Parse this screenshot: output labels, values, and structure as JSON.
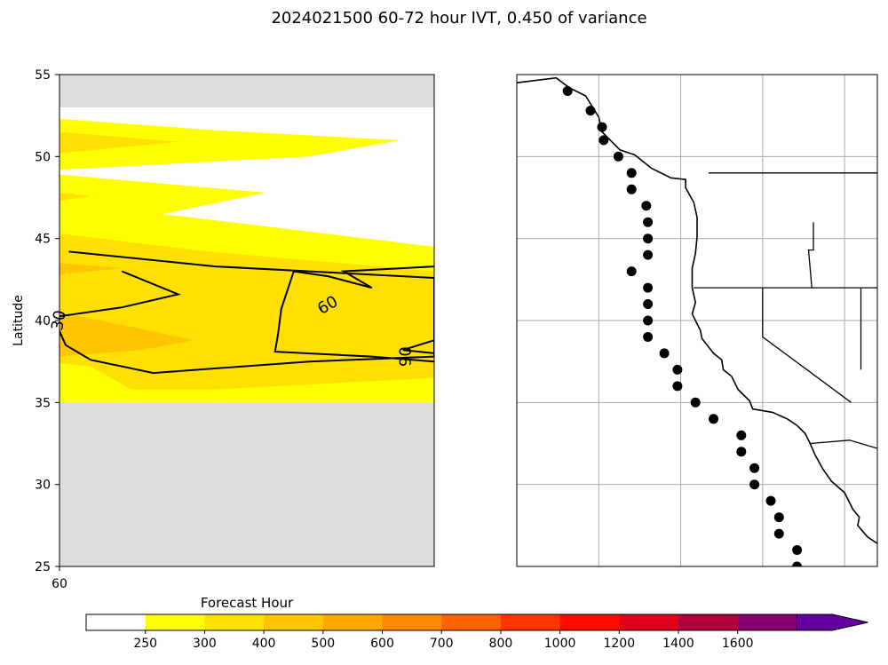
{
  "title": "2024021500 60-72 hour IVT, 0.450 of variance",
  "chart_data": [
    {
      "type": "heatmap",
      "panel": "left",
      "xlabel": "Forecast Hour",
      "ylabel": "Latitude",
      "x_tick_labels": [
        "60"
      ],
      "y_ticks": [
        25,
        30,
        35,
        40,
        45,
        50,
        55
      ],
      "ylim": [
        25,
        55
      ],
      "xlim": [
        60,
        72
      ],
      "no_data_lat_ranges": [
        [
          25,
          35
        ],
        [
          53,
          55
        ]
      ],
      "filled_regions": [
        {
          "level": "250-300",
          "color": "#ffff00",
          "polygon": [
            [
              60,
              52.3
            ],
            [
              65,
              51.6
            ],
            [
              70.9,
              51
            ],
            [
              68,
              50
            ],
            [
              60,
              49.2
            ],
            [
              60,
              52.3
            ]
          ]
        },
        {
          "level": "300-400",
          "color": "#ffe000",
          "polygon": [
            [
              60,
              51.5
            ],
            [
              63.8,
              50.9
            ],
            [
              60,
              50.2
            ],
            [
              60,
              51.5
            ]
          ]
        },
        {
          "level": "250-300",
          "color": "#ffff00",
          "polygon": [
            [
              60,
              48.9
            ],
            [
              66.6,
              47.8
            ],
            [
              63.3,
              46.5
            ],
            [
              72,
              44.5
            ],
            [
              72,
              35
            ],
            [
              60,
              35
            ],
            [
              60,
              48.9
            ]
          ]
        },
        {
          "level": "300-400",
          "color": "#ffe000",
          "polygon": [
            [
              60,
              47.8
            ],
            [
              61,
              47.6
            ],
            [
              60,
              47.3
            ],
            [
              60,
              47.8
            ]
          ]
        },
        {
          "level": "300-400",
          "color": "#ffe000",
          "polygon": [
            [
              60,
              45.3
            ],
            [
              64.8,
              44.2
            ],
            [
              72,
              43
            ],
            [
              72,
              36.5
            ],
            [
              65,
              35.8
            ],
            [
              62.3,
              35.8
            ],
            [
              61,
              37.2
            ],
            [
              60,
              37.4
            ],
            [
              60,
              45.3
            ]
          ]
        },
        {
          "level": "400-500",
          "color": "#ffc500",
          "polygon": [
            [
              60,
              43.5
            ],
            [
              62,
              43.2
            ],
            [
              60,
              42.8
            ],
            [
              60,
              43.5
            ]
          ]
        },
        {
          "level": "400-500",
          "color": "#ffc500",
          "polygon": [
            [
              60,
              40.5
            ],
            [
              62.6,
              39.5
            ],
            [
              64.3,
              38.8
            ],
            [
              62.6,
              38.2
            ],
            [
              60,
              37.8
            ],
            [
              60,
              40.5
            ]
          ]
        }
      ],
      "contours": [
        {
          "label": "30",
          "points": [
            [
              60.3,
              44.2
            ],
            [
              65,
              43.3
            ],
            [
              72,
              42.6
            ],
            [
              72,
              37.8
            ],
            [
              68,
              37.5
            ],
            [
              63,
              36.8
            ],
            [
              61,
              37.6
            ],
            [
              60.2,
              38.5
            ],
            [
              59.8,
              40.2
            ],
            [
              62,
              40.8
            ],
            [
              63.8,
              41.6
            ],
            [
              62,
              43
            ]
          ]
        },
        {
          "label": "60",
          "points": [
            [
              72,
              43.3
            ],
            [
              69.1,
              43
            ],
            [
              70,
              42
            ],
            [
              68.6,
              42.7
            ],
            [
              67.5,
              43
            ],
            [
              67.1,
              40.7
            ],
            [
              67,
              39.2
            ],
            [
              66.9,
              38.1
            ],
            [
              70,
              37.8
            ],
            [
              72,
              37.5
            ]
          ]
        },
        {
          "label": "90",
          "points": [
            [
              72,
              38.8
            ],
            [
              71,
              38.2
            ],
            [
              72,
              38
            ]
          ]
        }
      ]
    },
    {
      "type": "map",
      "panel": "right",
      "region": "North American west coast",
      "lon_range": [
        -135,
        -113
      ],
      "lat_range": [
        25,
        55
      ],
      "gridline_lons": [
        -130,
        -125,
        -120,
        -115
      ],
      "gridline_lats": [
        30,
        35,
        40,
        45,
        50
      ],
      "marker_color": "#000000",
      "points": [
        [
          -131.9,
          54
        ],
        [
          -130.5,
          52.8
        ],
        [
          -129.8,
          51.8
        ],
        [
          -129.7,
          51
        ],
        [
          -128.8,
          50
        ],
        [
          -128,
          49
        ],
        [
          -128,
          48
        ],
        [
          -127.1,
          47
        ],
        [
          -127,
          46
        ],
        [
          -127,
          45
        ],
        [
          -127,
          44
        ],
        [
          -128,
          43
        ],
        [
          -127,
          42
        ],
        [
          -127,
          41
        ],
        [
          -127,
          40
        ],
        [
          -127,
          39
        ],
        [
          -126,
          38
        ],
        [
          -125.2,
          37
        ],
        [
          -125.2,
          36
        ],
        [
          -124.1,
          35
        ],
        [
          -123,
          34
        ],
        [
          -121.3,
          33
        ],
        [
          -121.3,
          32
        ],
        [
          -120.5,
          31
        ],
        [
          -120.5,
          30
        ],
        [
          -119.5,
          29
        ],
        [
          -119,
          28
        ],
        [
          -119,
          27
        ],
        [
          -117.9,
          26
        ],
        [
          -117.9,
          25
        ]
      ],
      "coastline": [
        [
          -135,
          54.5
        ],
        [
          -132.6,
          54.8
        ],
        [
          -131.8,
          54.2
        ],
        [
          -130.8,
          53.7
        ],
        [
          -130,
          52.4
        ],
        [
          -129.8,
          51.5
        ],
        [
          -128.7,
          50.4
        ],
        [
          -127.8,
          50.1
        ],
        [
          -126.8,
          49.3
        ],
        [
          -125.6,
          48.7
        ],
        [
          -124.7,
          48.6
        ],
        [
          -124.7,
          48.1
        ],
        [
          -124.2,
          47.2
        ],
        [
          -124,
          46.3
        ],
        [
          -124,
          45.1
        ],
        [
          -124.1,
          44.1
        ],
        [
          -124.3,
          43.2
        ],
        [
          -124.3,
          42
        ],
        [
          -124.1,
          41.1
        ],
        [
          -124.3,
          40.4
        ],
        [
          -123.8,
          39.4
        ],
        [
          -123.7,
          38.9
        ],
        [
          -123,
          38
        ],
        [
          -122.5,
          37.6
        ],
        [
          -122.4,
          37
        ],
        [
          -121.9,
          36.6
        ],
        [
          -121.5,
          35.8
        ],
        [
          -120.8,
          35.1
        ],
        [
          -120.6,
          34.6
        ],
        [
          -119.4,
          34.4
        ],
        [
          -118.5,
          34
        ],
        [
          -117.9,
          33.6
        ],
        [
          -117.4,
          33.1
        ],
        [
          -117.1,
          32.5
        ],
        [
          -116.8,
          31.8
        ],
        [
          -116.3,
          30.9
        ],
        [
          -115.8,
          30.2
        ],
        [
          -115,
          29.5
        ],
        [
          -114.5,
          28.5
        ],
        [
          -114.1,
          28
        ],
        [
          -114.2,
          27.5
        ],
        [
          -113.6,
          26.8
        ],
        [
          -113,
          26.4
        ]
      ],
      "border_lines": [
        {
          "name": "49th parallel",
          "points": [
            [
              -123.3,
              49
            ],
            [
              -113,
              49
            ]
          ]
        },
        {
          "name": "Oregon-California",
          "points": [
            [
              -124.2,
              42
            ],
            [
              -113,
              42
            ]
          ]
        },
        {
          "name": "California-Nevada",
          "points": [
            [
              -120,
              42
            ],
            [
              -120,
              39
            ],
            [
              -114.6,
              35
            ]
          ]
        },
        {
          "name": "Oregon-Idaho",
          "points": [
            [
              -116.9,
              46
            ],
            [
              -116.9,
              44.3
            ],
            [
              -117.2,
              44.3
            ],
            [
              -117,
              42
            ]
          ]
        },
        {
          "name": "Nevada-Utah",
          "points": [
            [
              -114,
              42
            ],
            [
              -114,
              37
            ]
          ]
        },
        {
          "name": "Mexico border",
          "points": [
            [
              -117.1,
              32.5
            ],
            [
              -114.7,
              32.7
            ],
            [
              -113,
              32.2
            ]
          ]
        }
      ]
    }
  ],
  "colorbar": {
    "tick_labels": [
      "250",
      "300",
      "400",
      "500",
      "600",
      "700",
      "800",
      "1000",
      "1200",
      "1400",
      "1600"
    ],
    "colors": [
      "#ffffff",
      "#ffff00",
      "#ffe000",
      "#ffc500",
      "#ffa800",
      "#ff8800",
      "#ff6200",
      "#ff3500",
      "#ff0c00",
      "#e0001b",
      "#b0003d",
      "#860070",
      "#6400a0"
    ],
    "extend": "max"
  }
}
